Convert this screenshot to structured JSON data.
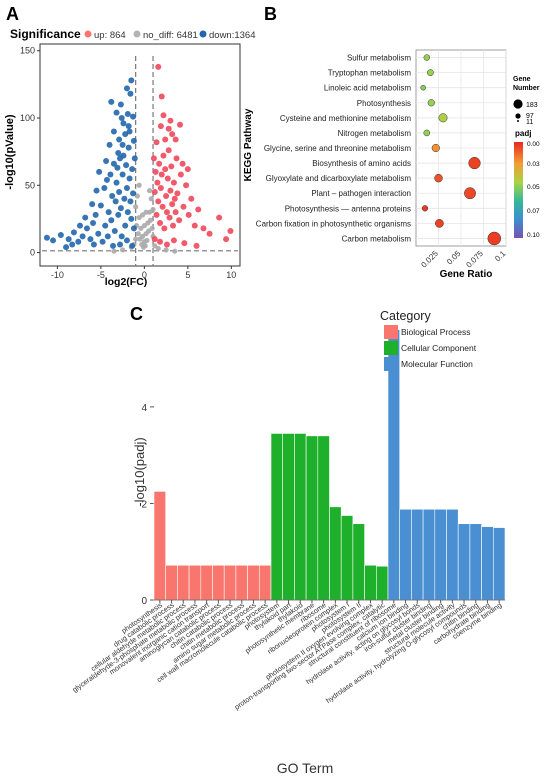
{
  "panels": {
    "a": "A",
    "b": "B",
    "c": "C"
  },
  "chart_data": [
    {
      "type": "scatter",
      "panel": "A",
      "legend_title": "Significance",
      "legend": [
        {
          "label": "up: 864",
          "color": "#f8766d"
        },
        {
          "label": "no_diff: 6481",
          "color": "#b3b3b3"
        },
        {
          "label": "down:1364",
          "color": "#2166ac"
        }
      ],
      "xlabel": "log2(FC)",
      "ylabel": "-log10(pValue)",
      "xticks": [
        -10,
        -5,
        0,
        5,
        10
      ],
      "yticks": [
        0,
        50,
        100,
        150
      ],
      "xlim": [
        -12,
        11
      ],
      "ylim": [
        -10,
        155
      ],
      "thresholds": {
        "fc": [
          -1,
          1
        ],
        "p": 1.3
      },
      "points_down": [
        [
          -11.2,
          11
        ],
        [
          -10.5,
          9
        ],
        [
          -9.6,
          13
        ],
        [
          -8.7,
          10
        ],
        [
          -8.1,
          15
        ],
        [
          -7.6,
          8
        ],
        [
          -7.1,
          12
        ],
        [
          -6.6,
          18
        ],
        [
          -6.2,
          10
        ],
        [
          -5.9,
          22
        ],
        [
          -5.6,
          28
        ],
        [
          -5.3,
          14
        ],
        [
          -5.0,
          35
        ],
        [
          -4.8,
          8
        ],
        [
          -4.6,
          48
        ],
        [
          -4.5,
          20
        ],
        [
          -4.3,
          54
        ],
        [
          -4.1,
          30
        ],
        [
          -3.9,
          58
        ],
        [
          -3.8,
          24
        ],
        [
          -3.7,
          42
        ],
        [
          -3.5,
          66
        ],
        [
          -3.4,
          16
        ],
        [
          -3.3,
          38
        ],
        [
          -3.2,
          52
        ],
        [
          -3.1,
          63
        ],
        [
          -3.0,
          28
        ],
        [
          -2.9,
          45
        ],
        [
          -2.8,
          70
        ],
        [
          -2.7,
          33
        ],
        [
          -2.6,
          12
        ],
        [
          -2.5,
          58
        ],
        [
          -2.4,
          72
        ],
        [
          -2.3,
          40
        ],
        [
          -2.2,
          20
        ],
        [
          -2.1,
          65
        ],
        [
          -2.0,
          48
        ],
        [
          -1.9,
          30
        ],
        [
          -1.8,
          78
        ],
        [
          -1.7,
          55
        ],
        [
          -1.6,
          38
        ],
        [
          -1.5,
          25
        ],
        [
          -1.4,
          62
        ],
        [
          -1.3,
          44
        ],
        [
          -1.2,
          18
        ],
        [
          -1.1,
          70
        ],
        [
          -3.8,
          112
        ],
        [
          -3.2,
          104
        ],
        [
          -2.7,
          110
        ],
        [
          -2.4,
          96
        ],
        [
          -2.2,
          88
        ],
        [
          -1.9,
          103
        ],
        [
          -1.7,
          90
        ],
        [
          -1.5,
          128
        ],
        [
          -1.3,
          101
        ],
        [
          -1.2,
          83
        ],
        [
          -2.9,
          84
        ],
        [
          -3.5,
          90
        ],
        [
          -4.0,
          80
        ],
        [
          -4.4,
          68
        ],
        [
          -5.2,
          60
        ],
        [
          -5.5,
          46
        ],
        [
          -6.0,
          36
        ],
        [
          -6.8,
          26
        ],
        [
          -7.4,
          20
        ],
        [
          -8.3,
          6
        ],
        [
          -9.0,
          4
        ],
        [
          -3.6,
          5
        ],
        [
          -2.8,
          6
        ],
        [
          -2.0,
          9
        ],
        [
          -1.4,
          5
        ],
        [
          -4.2,
          12
        ],
        [
          -5.8,
          6
        ],
        [
          -1.6,
          118
        ],
        [
          -2.0,
          122
        ],
        [
          -2.5,
          80
        ],
        [
          -3.0,
          74
        ],
        [
          -1.8,
          94
        ],
        [
          -2.6,
          100
        ]
      ],
      "points_up": [
        [
          1.1,
          70
        ],
        [
          1.2,
          45
        ],
        [
          1.3,
          60
        ],
        [
          1.4,
          28
        ],
        [
          1.5,
          52
        ],
        [
          1.6,
          38
        ],
        [
          1.7,
          66
        ],
        [
          1.8,
          22
        ],
        [
          1.9,
          48
        ],
        [
          2.0,
          58
        ],
        [
          2.1,
          34
        ],
        [
          2.2,
          72
        ],
        [
          2.3,
          18
        ],
        [
          2.4,
          62
        ],
        [
          2.5,
          42
        ],
        [
          2.6,
          30
        ],
        [
          2.7,
          55
        ],
        [
          2.8,
          76
        ],
        [
          2.9,
          26
        ],
        [
          3.0,
          46
        ],
        [
          3.1,
          64
        ],
        [
          3.2,
          36
        ],
        [
          3.3,
          20
        ],
        [
          3.4,
          52
        ],
        [
          3.5,
          40
        ],
        [
          3.6,
          30
        ],
        [
          3.8,
          44
        ],
        [
          4.0,
          24
        ],
        [
          4.2,
          58
        ],
        [
          4.5,
          34
        ],
        [
          4.8,
          50
        ],
        [
          5.1,
          28
        ],
        [
          5.4,
          40
        ],
        [
          5.8,
          20
        ],
        [
          6.2,
          32
        ],
        [
          6.8,
          18
        ],
        [
          7.5,
          14
        ],
        [
          8.6,
          26
        ],
        [
          9.4,
          10
        ],
        [
          9.9,
          16
        ],
        [
          2.8,
          92
        ],
        [
          3.2,
          88
        ],
        [
          3.6,
          84
        ],
        [
          4.1,
          95
        ],
        [
          1.6,
          138
        ],
        [
          2.0,
          116
        ],
        [
          3.0,
          98
        ],
        [
          2.4,
          84
        ],
        [
          1.4,
          82
        ],
        [
          3.7,
          70
        ],
        [
          4.4,
          66
        ],
        [
          5.0,
          62
        ],
        [
          1.2,
          10
        ],
        [
          1.8,
          8
        ],
        [
          2.6,
          6
        ],
        [
          3.4,
          9
        ],
        [
          4.6,
          7
        ],
        [
          6.0,
          5
        ],
        [
          2.2,
          102
        ],
        [
          1.9,
          94
        ]
      ],
      "points_nodiff": [
        [
          -1.0,
          34
        ],
        [
          -0.8,
          42
        ],
        [
          -0.6,
          26
        ],
        [
          -0.4,
          18
        ],
        [
          -0.2,
          12
        ],
        [
          0.0,
          8
        ],
        [
          0.2,
          14
        ],
        [
          0.4,
          22
        ],
        [
          0.6,
          30
        ],
        [
          0.8,
          40
        ],
        [
          1.0,
          32
        ],
        [
          -0.9,
          20
        ],
        [
          -0.7,
          14
        ],
        [
          -0.5,
          10
        ],
        [
          -0.3,
          6
        ],
        [
          -0.1,
          4
        ],
        [
          0.1,
          5
        ],
        [
          0.3,
          9
        ],
        [
          0.5,
          16
        ],
        [
          0.7,
          24
        ],
        [
          0.9,
          18
        ],
        [
          -1.5,
          4
        ],
        [
          -1.2,
          6
        ],
        [
          1.2,
          5
        ],
        [
          1.6,
          3
        ],
        [
          -2.5,
          2
        ],
        [
          2.5,
          2
        ],
        [
          -3.5,
          1
        ],
        [
          3.5,
          1
        ],
        [
          -1.0,
          10
        ],
        [
          1.0,
          12
        ],
        [
          -0.6,
          50
        ],
        [
          0.6,
          46
        ],
        [
          0.0,
          20
        ],
        [
          -0.2,
          28
        ],
        [
          0.2,
          30
        ]
      ]
    },
    {
      "type": "scatter",
      "panel": "B",
      "categories": [
        "Sulfur metabolism",
        "Tryptophan metabolism",
        "Linoleic acid metabolism",
        "Photosynthesis",
        "Cysteine and methionine metabolism",
        "Nitrogen metabolism",
        "Glycine, serine and threonine metabolism",
        "Biosynthesis of amino acids",
        "Glyoxylate and dicarboxylate metabolism",
        "Plant – pathogen interaction",
        "Photosynthesis — antenna proteins",
        "Carbon fixation in photosynthetic organisms",
        "Carbon metabolism"
      ],
      "gene_ratio": [
        0.012,
        0.016,
        0.008,
        0.017,
        0.03,
        0.012,
        0.022,
        0.065,
        0.025,
        0.06,
        0.01,
        0.026,
        0.087
      ],
      "gene_number": [
        20,
        25,
        11,
        30,
        60,
        22,
        45,
        140,
        50,
        130,
        18,
        55,
        183
      ],
      "padj": [
        0.045,
        0.045,
        0.048,
        0.045,
        0.04,
        0.045,
        0.02,
        0.005,
        0.008,
        0.006,
        0.003,
        0.005,
        0.004
      ],
      "xlabel": "Gene Ratio",
      "ylabel": "KEGG Pathway",
      "xticks": [
        "0.025",
        "0.05",
        "0.075",
        "0.1"
      ],
      "xtick_values": [
        0.025,
        0.05,
        0.075,
        0.1
      ],
      "xlim": [
        0,
        0.1
      ],
      "size_legend_title": "Gene Number",
      "size_legend": [
        "183",
        "97",
        "11"
      ],
      "color_legend_title": "padj",
      "color_legend_ticks": [
        "0.00",
        "0.03",
        "0.05",
        "0.07",
        "0.10"
      ]
    },
    {
      "type": "bar",
      "panel": "C",
      "xlabel": "GO Term",
      "ylabel": "-log10(padj)",
      "yticks": [
        0,
        2,
        4
      ],
      "ylim": [
        0,
        5.8
      ],
      "legend_title": "Category",
      "legend": [
        {
          "label": "Biological Process",
          "color": "#f8766d"
        },
        {
          "label": "Cellular Component",
          "color": "#1eb02a"
        },
        {
          "label": "Molecular Function",
          "color": "#4a8fd2"
        }
      ],
      "categories": [
        "photosynthesis",
        "drug catabolic process",
        "cellular aldehyde metabolic process",
        "glyceraldehyde-3-phosphate metabolic process",
        "monovalent inorganic cation transport",
        "aminoglycan catabolic process",
        "chitin catabolic process",
        "chitin metabolic process",
        "amino sugar metabolic process",
        "cell wall macromolecule catabolic process",
        "photosystem",
        "thylakoid part",
        "thylakoid",
        "photosynthetic membrane",
        "ribosome",
        "ribonucleoprotein complex",
        "photosystem I",
        "photosystem II",
        "photosystem II oxygen evolving complex",
        "proton-transporting two-sector ATPase complex, catalytic",
        "structural constituent of ribosome",
        "calcium ion binding",
        "hydrolase activity, acting on glycosyl bonds",
        "iron-sulfur cluster binding",
        "metal cluster binding",
        "structural molecule activity",
        "hydrolase activity, hydrolyzing O-glycosyl compounds",
        "chitin binding",
        "carbohydrate binding",
        "coenzyme binding"
      ],
      "group": [
        0,
        0,
        0,
        0,
        0,
        0,
        0,
        0,
        0,
        0,
        1,
        1,
        1,
        1,
        1,
        1,
        1,
        1,
        1,
        1,
        2,
        2,
        2,
        2,
        2,
        2,
        2,
        2,
        2,
        2
      ],
      "values": [
        2.25,
        0.72,
        0.72,
        0.72,
        0.72,
        0.72,
        0.72,
        0.72,
        0.72,
        0.72,
        3.45,
        3.45,
        3.45,
        3.4,
        3.4,
        1.93,
        1.75,
        1.58,
        0.72,
        0.7,
        5.6,
        1.88,
        1.88,
        1.88,
        1.88,
        1.88,
        1.58,
        1.58,
        1.52,
        1.5
      ]
    }
  ]
}
